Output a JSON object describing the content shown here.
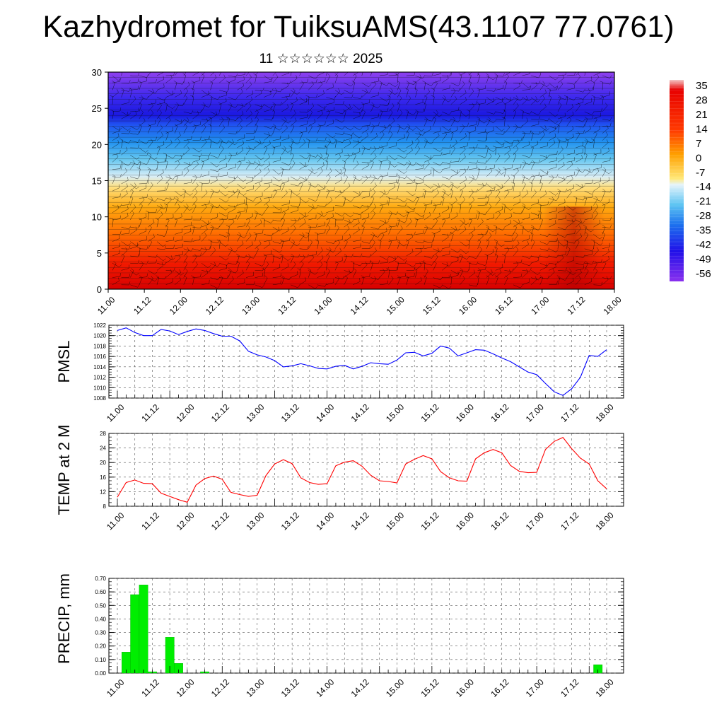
{
  "title": "Kazhydromet for TuiksuAMS(43.1107 77.0761)",
  "subtitle": "11 ☆☆☆☆☆☆ 2025",
  "time_labels": [
    "11.00",
    "11.12",
    "12.00",
    "12.12",
    "13.00",
    "13.12",
    "14.00",
    "14.12",
    "15.00",
    "15.12",
    "16.00",
    "16.12",
    "17.00",
    "17.12",
    "18.00"
  ],
  "chart_data": [
    {
      "type": "heatmap",
      "name_hint": "vertical section",
      "ylim": [
        0,
        30
      ],
      "yticks": [
        0,
        5,
        10,
        15,
        20,
        25,
        30
      ],
      "colorbar_labels": [
        "35",
        "28",
        "21",
        "14",
        "7",
        "0",
        "-7",
        "-14",
        "-21",
        "-28",
        "-35",
        "-42",
        "-49",
        "-56"
      ],
      "colors": {
        "warm": "#e60000",
        "orange": "#ff9a00",
        "yellow": "#ffe680",
        "cool": "#1e96f0",
        "cold": "#1a1ae6",
        "purple": "#8a3af0"
      }
    },
    {
      "type": "line",
      "ylabel": "PMSL",
      "ylim": [
        1008,
        1022
      ],
      "yticks": [
        "1008",
        "1010",
        "1012",
        "1014",
        "1016",
        "1018",
        "1020",
        "1022"
      ],
      "color": "#0000ff",
      "values": [
        1021.0,
        1021.5,
        1020.6,
        1020.0,
        1020.0,
        1021.2,
        1020.9,
        1020.2,
        1020.8,
        1021.3,
        1021.0,
        1020.4,
        1019.9,
        1019.9,
        1019.0,
        1017.0,
        1016.3,
        1015.9,
        1015.2,
        1014.0,
        1014.2,
        1014.6,
        1014.2,
        1013.7,
        1013.6,
        1014.1,
        1014.3,
        1013.6,
        1014.1,
        1014.8,
        1014.6,
        1014.5,
        1015.3,
        1016.7,
        1016.8,
        1016.1,
        1016.6,
        1018.0,
        1017.6,
        1016.1,
        1016.7,
        1017.3,
        1017.2,
        1016.5,
        1015.7,
        1015.0,
        1014.0,
        1013.0,
        1012.5,
        1010.8,
        1009.2,
        1008.5,
        1009.8,
        1012.0,
        1016.2,
        1016.0,
        1017.3
      ]
    },
    {
      "type": "line",
      "ylabel": "TEMP at 2 M",
      "ylim": [
        8,
        28
      ],
      "yticks": [
        "8",
        "12",
        "16",
        "20",
        "24",
        "28"
      ],
      "color": "#ff0000",
      "values": [
        10.5,
        14.5,
        15.2,
        14.3,
        14.2,
        11.6,
        10.7,
        9.8,
        9.1,
        13.8,
        15.6,
        16.3,
        15.4,
        11.8,
        11.2,
        10.7,
        11.0,
        16.4,
        19.6,
        20.8,
        19.7,
        15.8,
        14.5,
        14.0,
        14.2,
        19.1,
        20.1,
        20.5,
        19.0,
        16.5,
        15.0,
        14.8,
        14.4,
        19.6,
        20.9,
        21.9,
        21.0,
        17.5,
        15.8,
        15.0,
        14.9,
        21.0,
        22.7,
        23.6,
        22.7,
        19.2,
        17.6,
        17.2,
        17.3,
        23.6,
        25.8,
        26.9,
        23.8,
        21.2,
        19.6,
        15.0,
        12.8
      ]
    },
    {
      "type": "bar",
      "ylabel": "PRECIP, mm",
      "ylim": [
        0,
        0.7
      ],
      "yticks": [
        "0.00",
        "0.10",
        "0.20",
        "0.30",
        "0.40",
        "0.50",
        "0.60",
        "0.70"
      ],
      "color": "#00ee00",
      "values": [
        0,
        0.155,
        0.58,
        0.652,
        0.01,
        0,
        0.265,
        0.072,
        0,
        0,
        0.01,
        0,
        0,
        0,
        0,
        0,
        0,
        0,
        0,
        0,
        0,
        0,
        0,
        0,
        0,
        0,
        0,
        0,
        0,
        0,
        0,
        0,
        0,
        0,
        0,
        0,
        0,
        0,
        0,
        0,
        0,
        0,
        0,
        0,
        0,
        0,
        0,
        0,
        0,
        0,
        0,
        0,
        0,
        0,
        0,
        0.062,
        0
      ]
    }
  ]
}
